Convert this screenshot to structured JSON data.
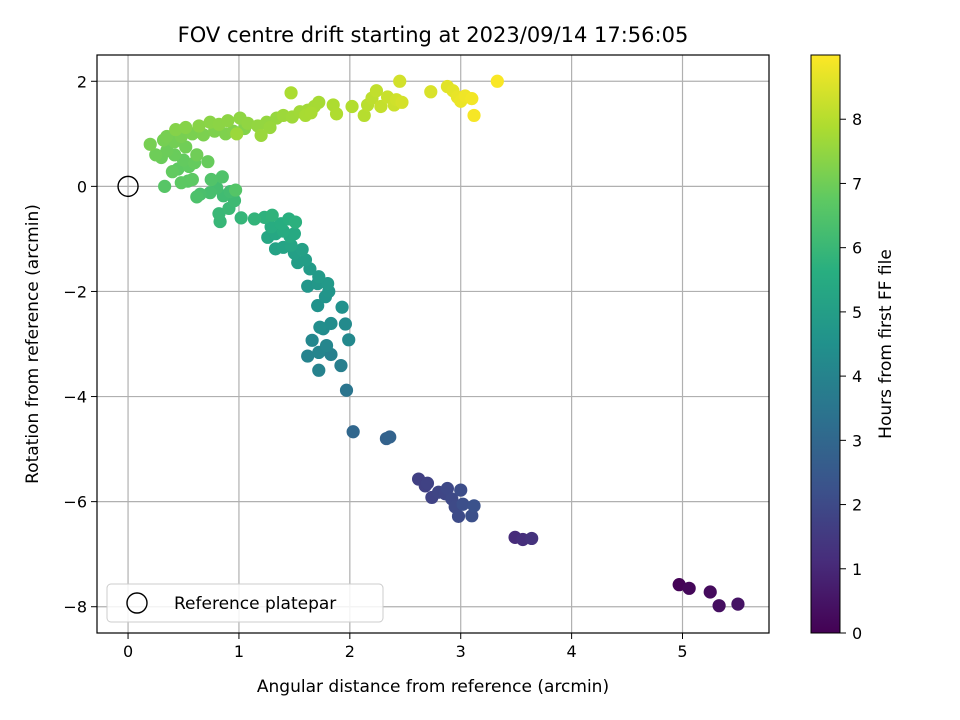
{
  "chart_data": {
    "type": "scatter",
    "title": "FOV centre drift starting at 2023/09/14 17:56:05",
    "xlabel": "Angular distance from reference (arcmin)",
    "ylabel": "Rotation from reference (arcmin)",
    "xlim": [
      -0.28,
      5.78
    ],
    "ylim": [
      -8.5,
      2.5
    ],
    "xticks": [
      0,
      1,
      2,
      3,
      4,
      5
    ],
    "yticks": [
      2,
      0,
      -2,
      -4,
      -6,
      -8
    ],
    "grid": true,
    "colormap": "viridis",
    "colorbar": {
      "label": "Hours from first FF file",
      "range": [
        0,
        9
      ],
      "ticks": [
        0,
        1,
        2,
        3,
        4,
        5,
        6,
        7,
        8
      ]
    },
    "legend": {
      "position": "lower-left",
      "entries": [
        "Reference platepar"
      ]
    },
    "reference_point": {
      "x": 0,
      "y": 0
    },
    "points": [
      {
        "x": 4.97,
        "y": -7.58,
        "h": 0.05
      },
      {
        "x": 5.06,
        "y": -7.65,
        "h": 0.15
      },
      {
        "x": 5.25,
        "y": -7.72,
        "h": 0.25
      },
      {
        "x": 5.33,
        "y": -7.98,
        "h": 0.35
      },
      {
        "x": 5.5,
        "y": -7.95,
        "h": 0.45
      },
      {
        "x": 3.49,
        "y": -6.68,
        "h": 1.1
      },
      {
        "x": 3.56,
        "y": -6.72,
        "h": 1.2
      },
      {
        "x": 3.64,
        "y": -6.7,
        "h": 1.3
      },
      {
        "x": 2.62,
        "y": -5.57,
        "h": 1.7
      },
      {
        "x": 2.7,
        "y": -5.65,
        "h": 1.75
      },
      {
        "x": 2.74,
        "y": -5.92,
        "h": 1.8
      },
      {
        "x": 2.8,
        "y": -5.82,
        "h": 1.85
      },
      {
        "x": 2.86,
        "y": -5.85,
        "h": 1.9
      },
      {
        "x": 2.88,
        "y": -5.75,
        "h": 1.95
      },
      {
        "x": 2.95,
        "y": -6.1,
        "h": 2.0
      },
      {
        "x": 2.98,
        "y": -6.28,
        "h": 2.05
      },
      {
        "x": 3.0,
        "y": -5.78,
        "h": 2.1
      },
      {
        "x": 3.02,
        "y": -6.05,
        "h": 2.15
      },
      {
        "x": 3.1,
        "y": -6.27,
        "h": 2.2
      },
      {
        "x": 3.12,
        "y": -6.08,
        "h": 2.25
      },
      {
        "x": 2.68,
        "y": -5.7,
        "h": 1.72
      },
      {
        "x": 2.92,
        "y": -5.95,
        "h": 1.98
      },
      {
        "x": 2.33,
        "y": -4.8,
        "h": 2.8
      },
      {
        "x": 2.36,
        "y": -4.77,
        "h": 2.85
      },
      {
        "x": 2.03,
        "y": -4.67,
        "h": 3.0
      },
      {
        "x": 1.97,
        "y": -3.88,
        "h": 3.5
      },
      {
        "x": 1.92,
        "y": -3.41,
        "h": 3.8
      },
      {
        "x": 1.83,
        "y": -3.2,
        "h": 3.9
      },
      {
        "x": 1.72,
        "y": -3.5,
        "h": 3.95
      },
      {
        "x": 1.62,
        "y": -3.23,
        "h": 4.0
      },
      {
        "x": 1.72,
        "y": -3.16,
        "h": 4.05
      },
      {
        "x": 1.79,
        "y": -3.03,
        "h": 4.1
      },
      {
        "x": 1.66,
        "y": -2.93,
        "h": 4.15
      },
      {
        "x": 1.99,
        "y": -2.92,
        "h": 4.2
      },
      {
        "x": 1.96,
        "y": -2.62,
        "h": 4.25
      },
      {
        "x": 1.76,
        "y": -2.71,
        "h": 4.3
      },
      {
        "x": 1.83,
        "y": -2.61,
        "h": 4.35
      },
      {
        "x": 1.73,
        "y": -2.68,
        "h": 4.4
      },
      {
        "x": 1.93,
        "y": -2.3,
        "h": 4.5
      },
      {
        "x": 1.71,
        "y": -2.27,
        "h": 4.55
      },
      {
        "x": 1.78,
        "y": -2.1,
        "h": 4.6
      },
      {
        "x": 1.81,
        "y": -2.0,
        "h": 4.65
      },
      {
        "x": 1.62,
        "y": -1.9,
        "h": 4.7
      },
      {
        "x": 1.71,
        "y": -1.85,
        "h": 4.75
      },
      {
        "x": 1.8,
        "y": -1.85,
        "h": 4.8
      },
      {
        "x": 1.72,
        "y": -1.72,
        "h": 4.85
      },
      {
        "x": 1.64,
        "y": -1.57,
        "h": 4.9
      },
      {
        "x": 1.53,
        "y": -1.45,
        "h": 4.95
      },
      {
        "x": 1.6,
        "y": -1.4,
        "h": 5.0
      },
      {
        "x": 1.5,
        "y": -1.27,
        "h": 5.05
      },
      {
        "x": 1.57,
        "y": -1.2,
        "h": 5.1
      },
      {
        "x": 1.33,
        "y": -1.19,
        "h": 5.15
      },
      {
        "x": 1.4,
        "y": -1.16,
        "h": 5.2
      },
      {
        "x": 1.47,
        "y": -1.12,
        "h": 5.25
      },
      {
        "x": 1.26,
        "y": -0.97,
        "h": 5.3
      },
      {
        "x": 1.33,
        "y": -0.9,
        "h": 5.35
      },
      {
        "x": 1.46,
        "y": -0.95,
        "h": 5.4
      },
      {
        "x": 1.5,
        "y": -0.9,
        "h": 5.45
      },
      {
        "x": 1.4,
        "y": -0.85,
        "h": 5.5
      },
      {
        "x": 1.29,
        "y": -0.77,
        "h": 5.55
      },
      {
        "x": 1.38,
        "y": -0.71,
        "h": 5.6
      },
      {
        "x": 1.45,
        "y": -0.62,
        "h": 5.65
      },
      {
        "x": 1.51,
        "y": -0.68,
        "h": 5.7
      },
      {
        "x": 1.23,
        "y": -0.59,
        "h": 5.75
      },
      {
        "x": 1.3,
        "y": -0.55,
        "h": 5.8
      },
      {
        "x": 1.14,
        "y": -0.62,
        "h": 5.85
      },
      {
        "x": 1.02,
        "y": -0.6,
        "h": 5.9
      },
      {
        "x": 0.83,
        "y": -0.67,
        "h": 5.95
      },
      {
        "x": 0.82,
        "y": -0.52,
        "h": 6.0
      },
      {
        "x": 0.91,
        "y": -0.42,
        "h": 6.05
      },
      {
        "x": 0.96,
        "y": -0.27,
        "h": 6.1
      },
      {
        "x": 0.86,
        "y": -0.18,
        "h": 6.15
      },
      {
        "x": 0.92,
        "y": -0.1,
        "h": 6.2
      },
      {
        "x": 0.8,
        "y": -0.03,
        "h": 6.25
      },
      {
        "x": 0.74,
        "y": -0.12,
        "h": 6.3
      },
      {
        "x": 0.65,
        "y": -0.15,
        "h": 6.35
      },
      {
        "x": 0.62,
        "y": -0.2,
        "h": 6.4
      },
      {
        "x": 0.85,
        "y": 0.18,
        "h": 6.45
      },
      {
        "x": 0.75,
        "y": 0.13,
        "h": 6.5
      },
      {
        "x": 0.97,
        "y": -0.07,
        "h": 6.55
      },
      {
        "x": 0.33,
        "y": 0.0,
        "h": 6.6
      },
      {
        "x": 0.54,
        "y": 0.1,
        "h": 6.65
      },
      {
        "x": 0.48,
        "y": 0.07,
        "h": 6.7
      },
      {
        "x": 0.58,
        "y": 0.13,
        "h": 6.72
      },
      {
        "x": 0.45,
        "y": 0.33,
        "h": 6.75
      },
      {
        "x": 0.55,
        "y": 0.38,
        "h": 6.78
      },
      {
        "x": 0.4,
        "y": 0.28,
        "h": 6.8
      },
      {
        "x": 0.5,
        "y": 0.5,
        "h": 6.82
      },
      {
        "x": 0.6,
        "y": 0.45,
        "h": 6.85
      },
      {
        "x": 0.72,
        "y": 0.47,
        "h": 6.88
      },
      {
        "x": 0.42,
        "y": 0.6,
        "h": 6.9
      },
      {
        "x": 0.3,
        "y": 0.55,
        "h": 6.92
      },
      {
        "x": 0.35,
        "y": 0.68,
        "h": 6.95
      },
      {
        "x": 0.25,
        "y": 0.6,
        "h": 6.98
      },
      {
        "x": 0.62,
        "y": 0.6,
        "h": 7.0
      },
      {
        "x": 0.52,
        "y": 0.75,
        "h": 7.02
      },
      {
        "x": 0.42,
        "y": 0.85,
        "h": 7.05
      },
      {
        "x": 0.32,
        "y": 0.88,
        "h": 7.08
      },
      {
        "x": 0.2,
        "y": 0.8,
        "h": 7.1
      },
      {
        "x": 0.48,
        "y": 0.95,
        "h": 7.12
      },
      {
        "x": 0.58,
        "y": 1.0,
        "h": 7.15
      },
      {
        "x": 0.68,
        "y": 0.98,
        "h": 7.18
      },
      {
        "x": 0.78,
        "y": 1.05,
        "h": 7.2
      },
      {
        "x": 0.88,
        "y": 1.0,
        "h": 7.22
      },
      {
        "x": 0.95,
        "y": 1.05,
        "h": 7.25
      },
      {
        "x": 1.05,
        "y": 1.1,
        "h": 7.28
      },
      {
        "x": 0.43,
        "y": 1.08,
        "h": 7.3
      },
      {
        "x": 0.52,
        "y": 1.12,
        "h": 7.32
      },
      {
        "x": 0.64,
        "y": 1.15,
        "h": 7.35
      },
      {
        "x": 0.74,
        "y": 1.22,
        "h": 7.38
      },
      {
        "x": 0.82,
        "y": 1.18,
        "h": 7.4
      },
      {
        "x": 0.9,
        "y": 1.25,
        "h": 7.42
      },
      {
        "x": 1.01,
        "y": 1.3,
        "h": 7.45
      },
      {
        "x": 1.08,
        "y": 1.2,
        "h": 7.48
      },
      {
        "x": 1.17,
        "y": 1.15,
        "h": 7.5
      },
      {
        "x": 1.25,
        "y": 1.22,
        "h": 7.52
      },
      {
        "x": 1.34,
        "y": 1.3,
        "h": 7.55
      },
      {
        "x": 1.28,
        "y": 1.12,
        "h": 7.58
      },
      {
        "x": 1.2,
        "y": 0.97,
        "h": 7.6
      },
      {
        "x": 0.98,
        "y": 1.0,
        "h": 7.62
      },
      {
        "x": 0.35,
        "y": 0.95,
        "h": 7.1
      },
      {
        "x": 1.4,
        "y": 1.35,
        "h": 7.65
      },
      {
        "x": 1.48,
        "y": 1.32,
        "h": 7.68
      },
      {
        "x": 1.55,
        "y": 1.42,
        "h": 7.7
      },
      {
        "x": 1.62,
        "y": 1.45,
        "h": 7.72
      },
      {
        "x": 1.68,
        "y": 1.52,
        "h": 7.75
      },
      {
        "x": 1.72,
        "y": 1.6,
        "h": 7.78
      },
      {
        "x": 1.6,
        "y": 1.35,
        "h": 7.8
      },
      {
        "x": 1.65,
        "y": 1.4,
        "h": 7.82
      },
      {
        "x": 1.47,
        "y": 1.78,
        "h": 7.85
      },
      {
        "x": 1.85,
        "y": 1.55,
        "h": 7.88
      },
      {
        "x": 1.88,
        "y": 1.38,
        "h": 7.9
      },
      {
        "x": 2.02,
        "y": 1.52,
        "h": 7.95
      },
      {
        "x": 2.13,
        "y": 1.35,
        "h": 8.0
      },
      {
        "x": 2.16,
        "y": 1.55,
        "h": 8.05
      },
      {
        "x": 2.2,
        "y": 1.68,
        "h": 8.1
      },
      {
        "x": 2.24,
        "y": 1.82,
        "h": 8.15
      },
      {
        "x": 2.28,
        "y": 1.52,
        "h": 8.2
      },
      {
        "x": 2.34,
        "y": 1.7,
        "h": 8.25
      },
      {
        "x": 2.4,
        "y": 1.55,
        "h": 8.3
      },
      {
        "x": 2.42,
        "y": 1.65,
        "h": 8.35
      },
      {
        "x": 2.45,
        "y": 2.0,
        "h": 8.4
      },
      {
        "x": 2.47,
        "y": 1.6,
        "h": 8.42
      },
      {
        "x": 2.73,
        "y": 1.8,
        "h": 8.5
      },
      {
        "x": 2.88,
        "y": 1.9,
        "h": 8.6
      },
      {
        "x": 2.93,
        "y": 1.82,
        "h": 8.65
      },
      {
        "x": 2.97,
        "y": 1.7,
        "h": 8.7
      },
      {
        "x": 3.0,
        "y": 1.62,
        "h": 8.75
      },
      {
        "x": 3.04,
        "y": 1.72,
        "h": 8.8
      },
      {
        "x": 3.1,
        "y": 1.67,
        "h": 8.85
      },
      {
        "x": 3.12,
        "y": 1.35,
        "h": 8.9
      },
      {
        "x": 3.33,
        "y": 2.0,
        "h": 8.95
      }
    ]
  }
}
